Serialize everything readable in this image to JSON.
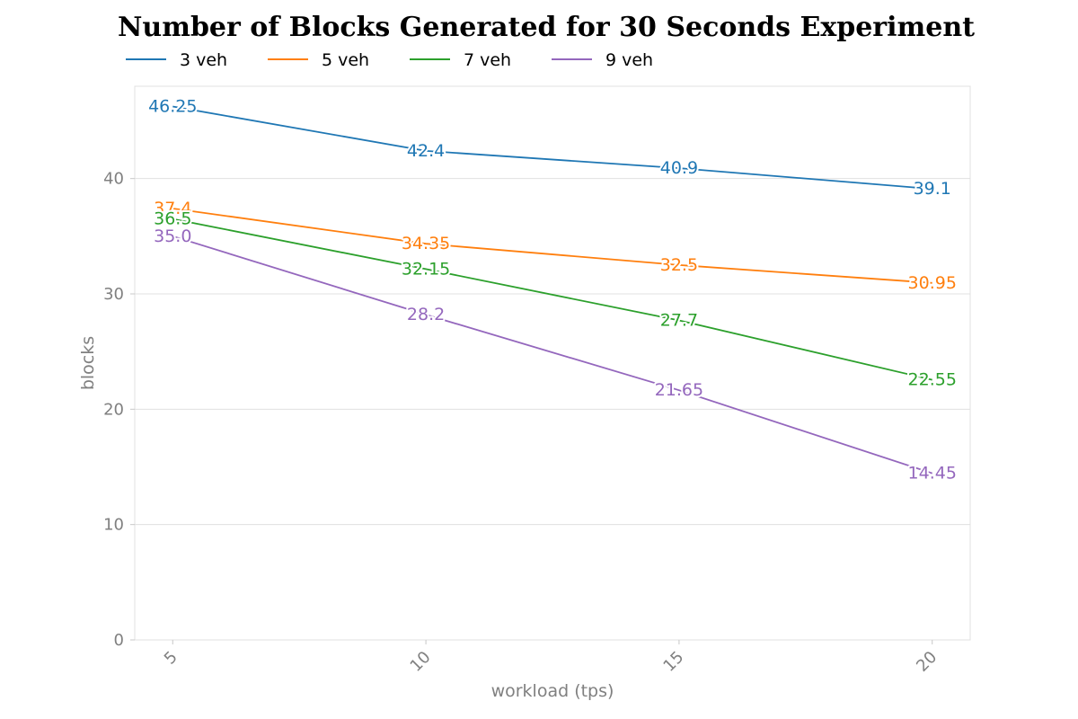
{
  "chart_data": {
    "type": "line",
    "title": "Number of Blocks Generated for 30 Seconds Experiment",
    "xlabel": "workload (tps)",
    "ylabel": "blocks",
    "x": [
      5,
      10,
      15,
      20
    ],
    "x_tick_labels": [
      "5",
      "10",
      "15",
      "20"
    ],
    "y_ticks": [
      0,
      10,
      20,
      30,
      40
    ],
    "y_tick_labels": [
      "0",
      "10",
      "20",
      "30",
      "40"
    ],
    "xlim": [
      4.25,
      20.75
    ],
    "ylim": [
      0,
      48
    ],
    "grid": "horizontal",
    "legend_position": "top-left",
    "series": [
      {
        "name": "3 veh",
        "color": "#1f77b4",
        "values": [
          46.25,
          42.4,
          40.9,
          39.1
        ],
        "labels": [
          "46.25",
          "42.4",
          "40.9",
          "39.1"
        ]
      },
      {
        "name": "5 veh",
        "color": "#ff7f0e",
        "values": [
          37.4,
          34.35,
          32.5,
          30.95
        ],
        "labels": [
          "37.4",
          "34.35",
          "32.5",
          "30.95"
        ]
      },
      {
        "name": "7 veh",
        "color": "#2ca02c",
        "values": [
          36.5,
          32.15,
          27.7,
          22.55
        ],
        "labels": [
          "36.5",
          "32.15",
          "27.7",
          "22.55"
        ]
      },
      {
        "name": "9 veh",
        "color": "#9467bd",
        "values": [
          35.0,
          28.2,
          21.65,
          14.45
        ],
        "labels": [
          "35.0",
          "28.2",
          "21.65",
          "14.45"
        ]
      }
    ]
  }
}
